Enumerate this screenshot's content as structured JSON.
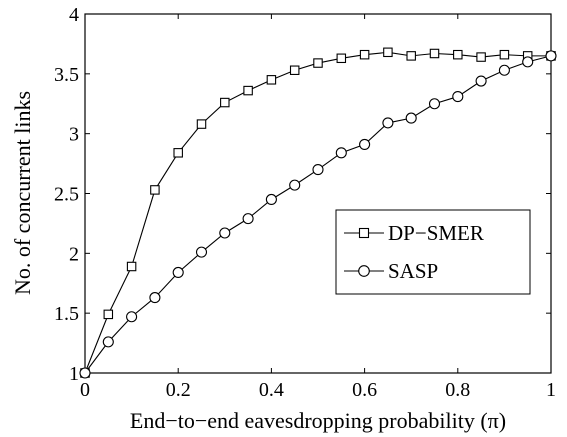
{
  "chart_data": {
    "type": "line",
    "title": "",
    "xlabel": "End−to−end eavesdropping probability (π)",
    "ylabel": "No. of concurrent links",
    "xlim": [
      0,
      1
    ],
    "ylim": [
      1,
      4
    ],
    "xticks": [
      0,
      0.2,
      0.4,
      0.6,
      0.8,
      1
    ],
    "xtick_labels": [
      "0",
      "0.2",
      "0.4",
      "0.6",
      "0.8",
      "1"
    ],
    "yticks": [
      1,
      1.5,
      2,
      2.5,
      3,
      3.5,
      4
    ],
    "ytick_labels": [
      "1",
      "1.5",
      "2",
      "2.5",
      "3",
      "3.5",
      "4"
    ],
    "grid": false,
    "legend_position": "center-right",
    "x": [
      0,
      0.05,
      0.1,
      0.15,
      0.2,
      0.25,
      0.3,
      0.35,
      0.4,
      0.45,
      0.5,
      0.55,
      0.6,
      0.65,
      0.7,
      0.75,
      0.8,
      0.85,
      0.9,
      0.95,
      1.0
    ],
    "series": [
      {
        "name": "DP−SMER",
        "marker": "square",
        "color": "#000000",
        "values": [
          1.0,
          1.49,
          1.89,
          2.53,
          2.84,
          3.08,
          3.26,
          3.36,
          3.45,
          3.53,
          3.59,
          3.63,
          3.66,
          3.68,
          3.65,
          3.67,
          3.66,
          3.64,
          3.66,
          3.65,
          3.65
        ]
      },
      {
        "name": "SASP",
        "marker": "circle",
        "color": "#000000",
        "values": [
          1.0,
          1.26,
          1.47,
          1.63,
          1.84,
          2.01,
          2.17,
          2.29,
          2.45,
          2.57,
          2.7,
          2.84,
          2.91,
          3.09,
          3.13,
          3.25,
          3.31,
          3.44,
          3.53,
          3.6,
          3.65
        ]
      }
    ]
  }
}
